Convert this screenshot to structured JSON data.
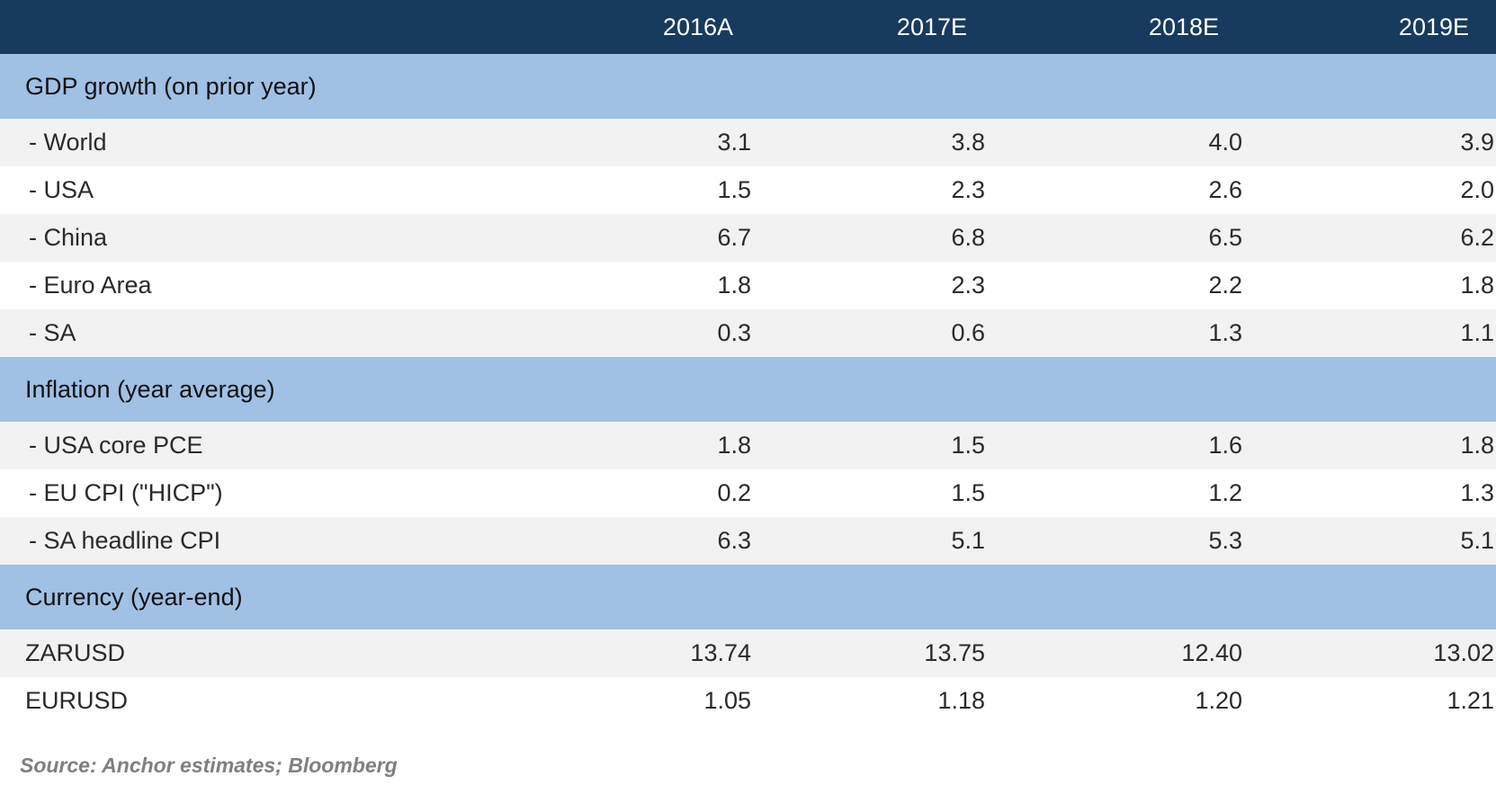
{
  "chart_data": {
    "type": "table",
    "columns": [
      "2016A",
      "2017E",
      "2018E",
      "2019E"
    ],
    "sections": [
      {
        "title": "GDP growth (on prior year)",
        "rows": [
          {
            "label": " - World",
            "values": [
              "3.1",
              "3.8",
              "4.0",
              "3.9"
            ]
          },
          {
            "label": " - USA",
            "values": [
              "1.5",
              "2.3",
              "2.6",
              "2.0"
            ]
          },
          {
            "label": " - China",
            "values": [
              "6.7",
              "6.8",
              "6.5",
              "6.2"
            ]
          },
          {
            "label": " - Euro Area",
            "values": [
              "1.8",
              "2.3",
              "2.2",
              "1.8"
            ]
          },
          {
            "label": " - SA",
            "values": [
              "0.3",
              "0.6",
              "1.3",
              "1.1"
            ]
          }
        ]
      },
      {
        "title": "Inflation (year average)",
        "rows": [
          {
            "label": " - USA core PCE",
            "values": [
              "1.8",
              "1.5",
              "1.6",
              "1.8"
            ]
          },
          {
            "label": " - EU CPI (\"HICP\")",
            "values": [
              "0.2",
              "1.5",
              "1.2",
              "1.3"
            ]
          },
          {
            "label": " - SA headline CPI",
            "values": [
              "6.3",
              "5.1",
              "5.3",
              "5.1"
            ]
          }
        ]
      },
      {
        "title": "Currency (year-end)",
        "rows": [
          {
            "label": "ZARUSD",
            "values": [
              "13.74",
              "13.75",
              "12.40",
              "13.02"
            ]
          },
          {
            "label": "EURUSD",
            "values": [
              "1.05",
              "1.18",
              "1.20",
              "1.21"
            ]
          }
        ]
      }
    ],
    "source": "Source: Anchor estimates; Bloomberg"
  },
  "colors": {
    "header_bg": "#173a5e",
    "section_bg": "#a0c0e4",
    "row_shaded": "#f2f2f2",
    "row_plain": "#ffffff",
    "source_text": "#7f7f7f"
  }
}
